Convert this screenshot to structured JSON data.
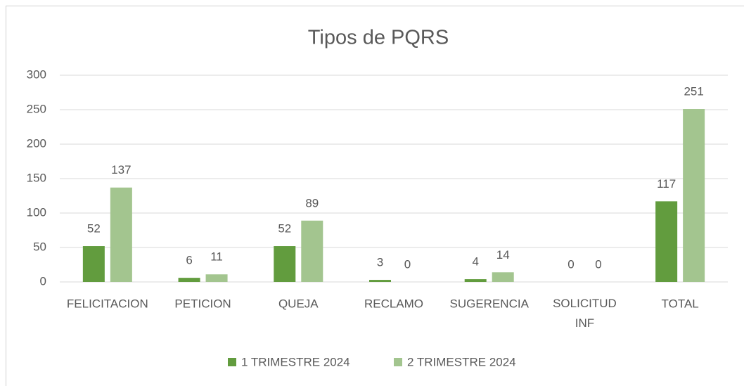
{
  "chart_data": {
    "type": "bar",
    "title": "Tipos de PQRS",
    "categories": [
      "FELICITACION",
      "PETICION",
      "QUEJA",
      "RECLAMO",
      "SUGERENCIA",
      "SOLICITUD INF",
      "TOTAL"
    ],
    "series": [
      {
        "name": "1 TRIMESTRE 2024",
        "color": "#629c3e",
        "values": [
          52,
          6,
          52,
          3,
          4,
          0,
          117
        ]
      },
      {
        "name": "2 TRIMESTRE 2024",
        "color": "#a3c58f",
        "values": [
          137,
          11,
          89,
          0,
          14,
          0,
          251
        ]
      }
    ],
    "ylim": [
      0,
      300
    ],
    "yticks": [
      0,
      50,
      100,
      150,
      200,
      250,
      300
    ],
    "grid": true,
    "legend": "bottom"
  }
}
